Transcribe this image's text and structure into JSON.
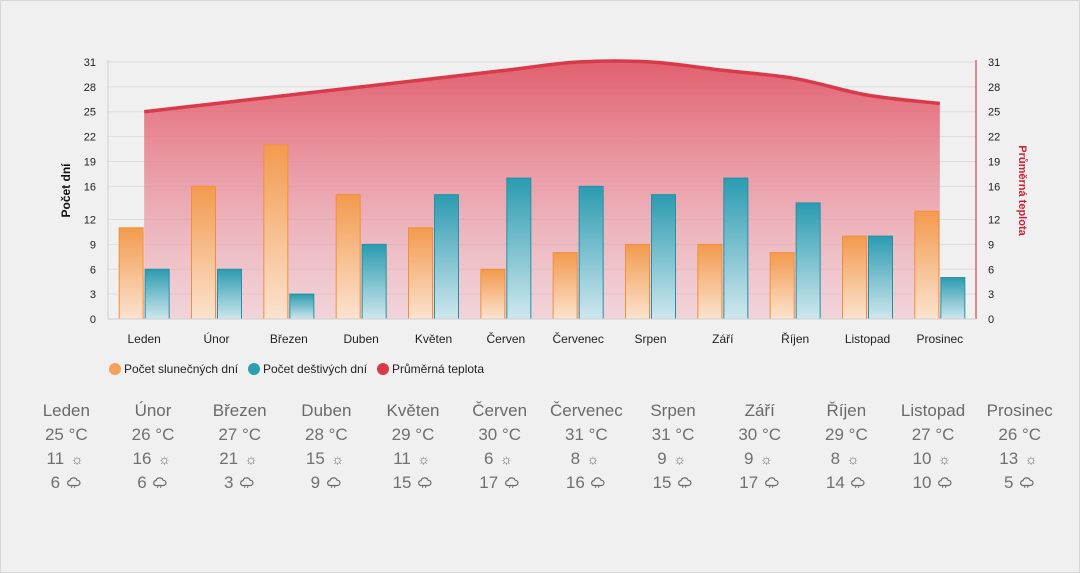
{
  "colors": {
    "sunny": "#f4a15a",
    "rainy": "#2e9fb3",
    "temperature": "#d93a4a",
    "axis_right": "#cc2233"
  },
  "chart_data": {
    "type": "bar",
    "categories": [
      "Leden",
      "Únor",
      "Březen",
      "Duben",
      "Květen",
      "Červen",
      "Červenec",
      "Srpen",
      "Září",
      "Říjen",
      "Listopad",
      "Prosinec"
    ],
    "series": [
      {
        "name": "Počet slunečných dní",
        "type": "bar",
        "axis": "left",
        "values": [
          11,
          16,
          21,
          15,
          11,
          6,
          8,
          9,
          9,
          8,
          10,
          13
        ]
      },
      {
        "name": "Počet deštivých dní",
        "type": "bar",
        "axis": "left",
        "values": [
          6,
          6,
          3,
          9,
          15,
          17,
          16,
          15,
          17,
          14,
          10,
          5
        ]
      },
      {
        "name": "Průměrná teplota",
        "type": "area",
        "axis": "right",
        "values": [
          25,
          26,
          27,
          28,
          29,
          30,
          31,
          31,
          30,
          29,
          27,
          26
        ]
      }
    ],
    "ylabel": "Počet dní",
    "y2label": "Průměrná teplota",
    "ylim": [
      0,
      31
    ],
    "y2lim": [
      0,
      31
    ],
    "yticks": [
      "0",
      "3",
      "6",
      "9",
      "12",
      "16",
      "19",
      "22",
      "25",
      "28",
      "31"
    ],
    "legend_position": "bottom-left",
    "grid": true
  },
  "summary": {
    "sun_icon": "sun-icon",
    "rain_icon": "cloud-rain-icon",
    "months": [
      {
        "name": "Leden",
        "temp": "25 °C",
        "sunny": "11",
        "rainy": "6"
      },
      {
        "name": "Únor",
        "temp": "26 °C",
        "sunny": "16",
        "rainy": "6"
      },
      {
        "name": "Březen",
        "temp": "27 °C",
        "sunny": "21",
        "rainy": "3"
      },
      {
        "name": "Duben",
        "temp": "28 °C",
        "sunny": "15",
        "rainy": "9"
      },
      {
        "name": "Květen",
        "temp": "29 °C",
        "sunny": "11",
        "rainy": "15"
      },
      {
        "name": "Červen",
        "temp": "30 °C",
        "sunny": "6",
        "rainy": "17"
      },
      {
        "name": "Červenec",
        "temp": "31 °C",
        "sunny": "8",
        "rainy": "16"
      },
      {
        "name": "Srpen",
        "temp": "31 °C",
        "sunny": "9",
        "rainy": "15"
      },
      {
        "name": "Září",
        "temp": "30 °C",
        "sunny": "9",
        "rainy": "17"
      },
      {
        "name": "Říjen",
        "temp": "29 °C",
        "sunny": "8",
        "rainy": "14"
      },
      {
        "name": "Listopad",
        "temp": "27 °C",
        "sunny": "10",
        "rainy": "10"
      },
      {
        "name": "Prosinec",
        "temp": "26 °C",
        "sunny": "13",
        "rainy": "5"
      }
    ]
  }
}
